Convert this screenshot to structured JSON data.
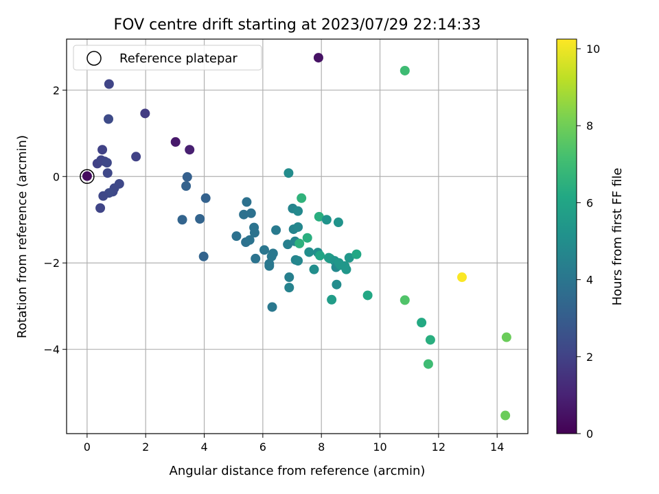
{
  "chart_data": {
    "type": "scatter",
    "title": "FOV centre drift starting at 2023/07/29 22:14:33",
    "xlabel": "Angular distance from reference (arcmin)",
    "ylabel": "Rotation from reference (arcmin)",
    "xlim": [
      -0.7,
      15.05
    ],
    "ylim": [
      -5.95,
      3.18
    ],
    "xticks": [
      0,
      2,
      4,
      6,
      8,
      10,
      12,
      14
    ],
    "yticks": [
      2,
      0,
      -2,
      -4
    ],
    "ytick_labels": [
      "2",
      "0",
      "−2",
      "−4"
    ],
    "grid": true,
    "legend": {
      "position": "top-left",
      "entries": [
        "Reference platepar"
      ]
    },
    "reference_point": {
      "x": 0,
      "y": 0
    },
    "colorbar": {
      "label": "Hours from first FF file",
      "range": [
        0,
        10.25
      ],
      "ticks": [
        0,
        2,
        4,
        6,
        8,
        10
      ],
      "colormap": "viridis"
    },
    "points": [
      {
        "x": 0.0,
        "y": 0.01,
        "c": 0.3
      },
      {
        "x": 7.9,
        "y": 2.75,
        "c": 0.5
      },
      {
        "x": 10.85,
        "y": 2.45,
        "c": 7.0
      },
      {
        "x": 0.75,
        "y": 2.14,
        "c": 2.1
      },
      {
        "x": 0.73,
        "y": 1.33,
        "c": 2.3
      },
      {
        "x": 1.98,
        "y": 1.46,
        "c": 1.8
      },
      {
        "x": 3.02,
        "y": 0.8,
        "c": 0.7
      },
      {
        "x": 3.5,
        "y": 0.62,
        "c": 0.9
      },
      {
        "x": 1.67,
        "y": 0.46,
        "c": 2.0
      },
      {
        "x": 0.52,
        "y": 0.62,
        "c": 2.0
      },
      {
        "x": 0.35,
        "y": 0.3,
        "c": 2.0
      },
      {
        "x": 0.48,
        "y": 0.38,
        "c": 2.1
      },
      {
        "x": 0.6,
        "y": 0.35,
        "c": 2.1
      },
      {
        "x": 0.68,
        "y": 0.32,
        "c": 2.2
      },
      {
        "x": 0.7,
        "y": 0.08,
        "c": 2.2
      },
      {
        "x": 1.1,
        "y": -0.17,
        "c": 2.2
      },
      {
        "x": 0.93,
        "y": -0.27,
        "c": 2.2
      },
      {
        "x": 0.88,
        "y": -0.35,
        "c": 2.2
      },
      {
        "x": 0.75,
        "y": -0.38,
        "c": 2.3
      },
      {
        "x": 0.55,
        "y": -0.45,
        "c": 2.2
      },
      {
        "x": 0.45,
        "y": -0.73,
        "c": 2.1
      },
      {
        "x": 3.42,
        "y": -0.01,
        "c": 3.1
      },
      {
        "x": 3.38,
        "y": -0.22,
        "c": 3.2
      },
      {
        "x": 4.05,
        "y": -0.5,
        "c": 3.2
      },
      {
        "x": 3.25,
        "y": -1.0,
        "c": 3.3
      },
      {
        "x": 3.85,
        "y": -0.98,
        "c": 3.3
      },
      {
        "x": 3.98,
        "y": -1.85,
        "c": 3.3
      },
      {
        "x": 5.45,
        "y": -0.59,
        "c": 3.8
      },
      {
        "x": 5.35,
        "y": -0.88,
        "c": 3.8
      },
      {
        "x": 5.6,
        "y": -0.85,
        "c": 3.8
      },
      {
        "x": 5.1,
        "y": -1.38,
        "c": 3.8
      },
      {
        "x": 5.42,
        "y": -1.52,
        "c": 3.8
      },
      {
        "x": 5.55,
        "y": -1.47,
        "c": 3.9
      },
      {
        "x": 5.7,
        "y": -1.18,
        "c": 3.9
      },
      {
        "x": 5.72,
        "y": -1.3,
        "c": 3.9
      },
      {
        "x": 5.75,
        "y": -1.9,
        "c": 3.9
      },
      {
        "x": 6.05,
        "y": -1.7,
        "c": 4.0
      },
      {
        "x": 6.22,
        "y": -2.02,
        "c": 4.0
      },
      {
        "x": 6.22,
        "y": -2.07,
        "c": 4.1
      },
      {
        "x": 6.3,
        "y": -1.85,
        "c": 4.1
      },
      {
        "x": 6.35,
        "y": -1.78,
        "c": 4.1
      },
      {
        "x": 6.32,
        "y": -3.02,
        "c": 4.1
      },
      {
        "x": 6.45,
        "y": -1.24,
        "c": 4.2
      },
      {
        "x": 6.88,
        "y": 0.08,
        "c": 4.9
      },
      {
        "x": 6.85,
        "y": -1.57,
        "c": 4.4
      },
      {
        "x": 6.9,
        "y": -2.33,
        "c": 4.4
      },
      {
        "x": 6.9,
        "y": -2.57,
        "c": 4.5
      },
      {
        "x": 7.02,
        "y": -0.74,
        "c": 4.6
      },
      {
        "x": 7.05,
        "y": -1.22,
        "c": 4.6
      },
      {
        "x": 7.1,
        "y": -1.5,
        "c": 4.6
      },
      {
        "x": 7.12,
        "y": -1.93,
        "c": 4.6
      },
      {
        "x": 7.2,
        "y": -1.17,
        "c": 4.7
      },
      {
        "x": 7.2,
        "y": -0.8,
        "c": 4.8
      },
      {
        "x": 7.2,
        "y": -1.95,
        "c": 4.7
      },
      {
        "x": 7.25,
        "y": -1.55,
        "c": 6.5
      },
      {
        "x": 7.32,
        "y": -0.5,
        "c": 6.6
      },
      {
        "x": 7.52,
        "y": -1.42,
        "c": 6.4
      },
      {
        "x": 7.58,
        "y": -1.75,
        "c": 5.0
      },
      {
        "x": 7.75,
        "y": -2.15,
        "c": 5.0
      },
      {
        "x": 7.88,
        "y": -1.76,
        "c": 5.0
      },
      {
        "x": 7.92,
        "y": -0.93,
        "c": 6.4
      },
      {
        "x": 7.95,
        "y": -1.83,
        "c": 6.0
      },
      {
        "x": 8.18,
        "y": -1.0,
        "c": 5.2
      },
      {
        "x": 8.25,
        "y": -1.88,
        "c": 5.7
      },
      {
        "x": 8.3,
        "y": -1.9,
        "c": 5.6
      },
      {
        "x": 8.35,
        "y": -2.85,
        "c": 5.6
      },
      {
        "x": 8.45,
        "y": -1.95,
        "c": 5.3
      },
      {
        "x": 8.5,
        "y": -2.1,
        "c": 4.8
      },
      {
        "x": 8.52,
        "y": -2.5,
        "c": 4.9
      },
      {
        "x": 8.58,
        "y": -1.06,
        "c": 5.2
      },
      {
        "x": 8.6,
        "y": -2.0,
        "c": 5.4
      },
      {
        "x": 8.65,
        "y": -2.05,
        "c": 5.4
      },
      {
        "x": 8.8,
        "y": -2.07,
        "c": 5.4
      },
      {
        "x": 8.85,
        "y": -2.15,
        "c": 5.4
      },
      {
        "x": 8.95,
        "y": -1.88,
        "c": 5.4
      },
      {
        "x": 9.2,
        "y": -1.8,
        "c": 6.1
      },
      {
        "x": 9.58,
        "y": -2.75,
        "c": 6.1
      },
      {
        "x": 10.85,
        "y": -2.86,
        "c": 7.4
      },
      {
        "x": 11.42,
        "y": -3.38,
        "c": 6.2
      },
      {
        "x": 11.72,
        "y": -3.78,
        "c": 6.4
      },
      {
        "x": 11.65,
        "y": -4.34,
        "c": 7.0
      },
      {
        "x": 12.8,
        "y": -2.33,
        "c": 10.2
      },
      {
        "x": 14.32,
        "y": -3.72,
        "c": 7.9
      },
      {
        "x": 14.28,
        "y": -5.53,
        "c": 7.9
      }
    ]
  }
}
